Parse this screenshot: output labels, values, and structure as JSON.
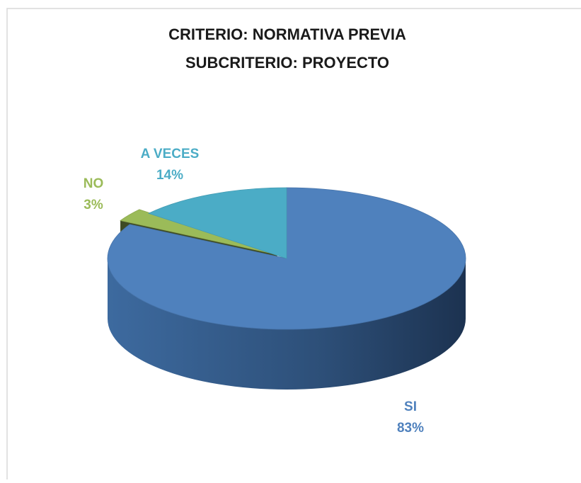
{
  "chart_data": {
    "type": "pie",
    "title": "CRITERIO: NORMATIVA PREVIA",
    "subtitle": "SUBCRITERIO: PROYECTO",
    "categories": [
      "SI",
      "NO",
      "A VECES"
    ],
    "values": [
      83,
      3,
      14
    ],
    "value_labels": [
      "83%",
      "3%",
      "14%"
    ],
    "colors": [
      "#4f81bd",
      "#9bbb59",
      "#4bacc6"
    ],
    "exploded": [
      false,
      true,
      false
    ]
  }
}
